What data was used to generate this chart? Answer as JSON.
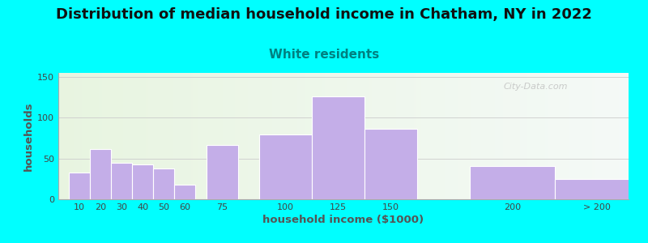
{
  "title": "Distribution of median household income in Chatham, NY in 2022",
  "subtitle": "White residents",
  "xlabel": "household income ($1000)",
  "ylabel": "households",
  "bg_color": "#00FFFF",
  "bar_color": "#C4AEE8",
  "bar_edge_color": "#FFFFFF",
  "title_fontsize": 13,
  "subtitle_fontsize": 11,
  "subtitle_color": "#008080",
  "categories": [
    "10",
    "20",
    "30",
    "40",
    "50",
    "60",
    "75",
    "100",
    "125",
    "150",
    "200",
    "> 200"
  ],
  "values": [
    33,
    62,
    45,
    43,
    38,
    18,
    67,
    79,
    126,
    86,
    41,
    25
  ],
  "ylim": [
    0,
    155
  ],
  "yticks": [
    0,
    50,
    100,
    150
  ],
  "watermark": "City-Data.com",
  "positions": [
    10,
    20,
    30,
    40,
    50,
    60,
    75,
    100,
    125,
    150,
    200,
    240
  ],
  "widths": [
    10,
    10,
    10,
    10,
    10,
    10,
    15,
    25,
    25,
    25,
    40,
    40
  ],
  "xlim": [
    5,
    275
  ]
}
